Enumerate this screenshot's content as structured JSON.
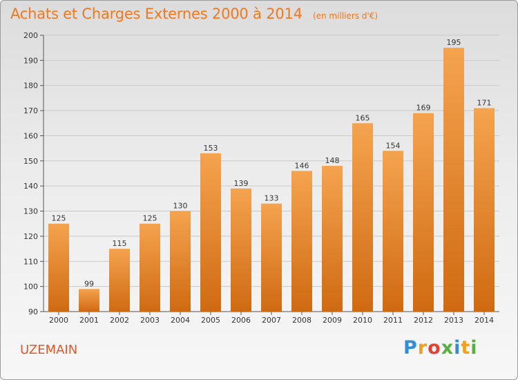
{
  "header": {
    "title": "Achats et Charges Externes 2000 à 2014",
    "subtitle": "(en milliers d'€)"
  },
  "footer": {
    "town": "UZEMAIN",
    "brand": "Proxiti"
  },
  "colors": {
    "accent": "#f07820",
    "bar_top": "#f5a34f",
    "bar_bottom": "#cf6a12",
    "town": "#e0582a"
  },
  "chart_data": {
    "type": "bar",
    "title": "Achats et Charges Externes 2000 à 2014",
    "subtitle": "(en milliers d'€)",
    "categories": [
      "2000",
      "2001",
      "2002",
      "2003",
      "2004",
      "2005",
      "2006",
      "2007",
      "2008",
      "2009",
      "2010",
      "2011",
      "2012",
      "2013",
      "2014"
    ],
    "values": [
      125,
      99,
      115,
      125,
      130,
      153,
      139,
      133,
      146,
      148,
      165,
      154,
      169,
      195,
      171
    ],
    "ylim": [
      90,
      200
    ],
    "yticks": [
      90,
      100,
      110,
      120,
      130,
      140,
      150,
      160,
      170,
      180,
      190,
      200
    ],
    "grid": true,
    "legend": "none",
    "data_labels": true
  }
}
